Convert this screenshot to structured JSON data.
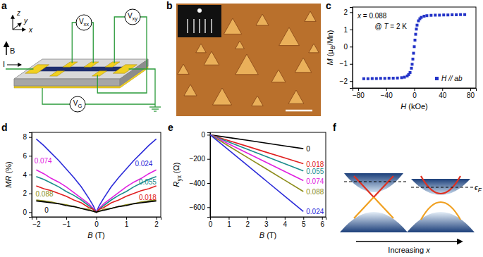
{
  "chart_data": [
    {
      "type": "scatter",
      "title": "c",
      "xlabel": [
        {
          "italic": "H"
        },
        " (kOe)"
      ],
      "ylabel": [
        {
          "italic": "M"
        },
        " (μ",
        {
          "sub": "B"
        },
        "/Mn)"
      ],
      "xlim": [
        -88,
        88
      ],
      "xticks": [
        -80,
        -40,
        0,
        40,
        80
      ],
      "ylim": [
        -2.4,
        2.3
      ],
      "yticks": [
        -2,
        -1,
        0,
        1,
        2
      ],
      "annotations": [
        [
          {
            "italic": "x"
          },
          " = 0.088"
        ],
        [
          "@ ",
          {
            "italic": "T"
          },
          " = 2 K"
        ]
      ],
      "legend": "lower right",
      "series": [
        {
          "name": "H // ab",
          "color": "#2333c8",
          "marker": "square",
          "x": [
            -72,
            -66,
            -60,
            -54,
            -48,
            -42,
            -36,
            -30,
            -24,
            -18,
            -14,
            -10,
            -8,
            -6,
            -4,
            -3,
            -2,
            -1,
            0,
            1,
            2,
            3,
            4,
            6,
            8,
            10,
            14,
            18,
            24,
            30,
            36,
            42,
            48,
            54,
            60,
            66,
            72
          ],
          "values": [
            -1.86,
            -1.86,
            -1.85,
            -1.85,
            -1.84,
            -1.84,
            -1.83,
            -1.83,
            -1.82,
            -1.8,
            -1.77,
            -1.7,
            -1.62,
            -1.5,
            -1.25,
            -1.02,
            -0.72,
            -0.38,
            0,
            0.38,
            0.72,
            1.02,
            1.25,
            1.5,
            1.62,
            1.7,
            1.77,
            1.8,
            1.82,
            1.83,
            1.83,
            1.84,
            1.84,
            1.85,
            1.85,
            1.86,
            1.86
          ]
        }
      ]
    },
    {
      "type": "line",
      "title": "d",
      "xlabel": [
        {
          "italic": "B"
        },
        " (T)"
      ],
      "ylabel": [
        {
          "italic": "MR"
        },
        " (%)"
      ],
      "xlim": [
        -2.15,
        2.15
      ],
      "xticks": [
        -2,
        -1,
        0,
        1,
        2
      ],
      "ylim": [
        -0.5,
        8.5
      ],
      "yticks": [
        0,
        2,
        4,
        6,
        8
      ],
      "x": [
        -2,
        -1.75,
        -1.5,
        -1.25,
        -1,
        -0.75,
        -0.5,
        -0.25,
        -0.1,
        0,
        0.1,
        0.25,
        0.5,
        0.75,
        1,
        1.25,
        1.5,
        1.75,
        2
      ],
      "series": [
        {
          "name": "0.024",
          "color": "#2b2bd9",
          "values": [
            7.8,
            7.1,
            6.3,
            5.5,
            4.6,
            3.7,
            2.7,
            1.5,
            0.7,
            0,
            0.7,
            1.5,
            2.7,
            3.7,
            4.6,
            5.5,
            6.3,
            7.1,
            7.8
          ]
        },
        {
          "name": "0.074",
          "color": "#e020e0",
          "values": [
            4.5,
            4.1,
            3.6,
            3.2,
            2.7,
            2.1,
            1.5,
            0.9,
            0.4,
            0,
            0.4,
            0.9,
            1.5,
            2.1,
            2.7,
            3.2,
            3.6,
            4.1,
            4.5
          ]
        },
        {
          "name": "0.055",
          "color": "#1a8c8c",
          "values": [
            3.8,
            3.5,
            3.1,
            2.7,
            2.2,
            1.8,
            1.3,
            0.7,
            0.3,
            0,
            0.3,
            0.7,
            1.3,
            1.8,
            2.2,
            2.7,
            3.1,
            3.5,
            3.8
          ]
        },
        {
          "name": "0.018",
          "color": "#e02020",
          "values": [
            2.8,
            2.5,
            2.3,
            2.0,
            1.7,
            1.3,
            1.0,
            0.5,
            0.3,
            0,
            0.3,
            0.5,
            1.0,
            1.3,
            1.7,
            2.0,
            2.3,
            2.5,
            2.8
          ]
        },
        {
          "name": "0.088",
          "color": "#8c8c1a",
          "values": [
            1.3,
            1.2,
            1.1,
            0.9,
            0.8,
            0.6,
            0.4,
            0.3,
            0.1,
            0,
            0.1,
            0.3,
            0.4,
            0.6,
            0.8,
            0.9,
            1.1,
            1.2,
            1.3
          ]
        },
        {
          "name": "0",
          "color": "#000000",
          "values": [
            1.2,
            1.1,
            1.0,
            0.9,
            0.7,
            0.6,
            0.4,
            0.2,
            0.1,
            0,
            0.1,
            0.2,
            0.4,
            0.6,
            0.7,
            0.9,
            1.0,
            1.1,
            1.2
          ]
        }
      ]
    },
    {
      "type": "line",
      "title": "e",
      "xlabel": [
        {
          "italic": "B"
        },
        " (T)"
      ],
      "ylabel": [
        {
          "italic": "R"
        },
        {
          "sub": "yx"
        },
        " (Ω)"
      ],
      "xlim": [
        0,
        6.2
      ],
      "xticks": [
        0,
        1,
        2,
        3,
        4,
        5,
        6
      ],
      "ylim": [
        -680,
        20
      ],
      "yticks": [
        0,
        -200,
        -400,
        -600
      ],
      "x": [
        0,
        1,
        2,
        3,
        4,
        5
      ],
      "series": [
        {
          "name": "0",
          "color": "#000000",
          "values": [
            0,
            -23,
            -46,
            -69,
            -92,
            -115
          ]
        },
        {
          "name": "0.018",
          "color": "#e02020",
          "values": [
            0,
            -48,
            -96,
            -144,
            -192,
            -240
          ]
        },
        {
          "name": "0.055",
          "color": "#1a8c8c",
          "values": [
            0,
            -60,
            -120,
            -180,
            -240,
            -300
          ]
        },
        {
          "name": "0.074",
          "color": "#e020e0",
          "values": [
            0,
            -76,
            -152,
            -228,
            -304,
            -380
          ]
        },
        {
          "name": "0.088",
          "color": "#8c8c1a",
          "values": [
            0,
            -94,
            -188,
            -282,
            -376,
            -470
          ]
        },
        {
          "name": "0.024",
          "color": "#2b2bd9",
          "values": [
            0,
            -127,
            -254,
            -381,
            -508,
            -635
          ]
        }
      ]
    }
  ],
  "diagrams": {
    "a": {
      "title": "a",
      "axes": [
        "z",
        "y",
        "x"
      ],
      "field": "B",
      "current": "I",
      "meters": [
        [
          "V",
          {
            "sub": "xx"
          }
        ],
        [
          "V",
          {
            "sub": "xy"
          }
        ],
        [
          "V",
          {
            "sub": "G"
          }
        ]
      ]
    },
    "b": {
      "title": "b"
    },
    "f": {
      "title": "f",
      "fermi": [
        "ϵ",
        {
          "sub": "F"
        }
      ],
      "arrow_label": [
        "Increasing ",
        {
          "italic": "x"
        }
      ]
    }
  }
}
